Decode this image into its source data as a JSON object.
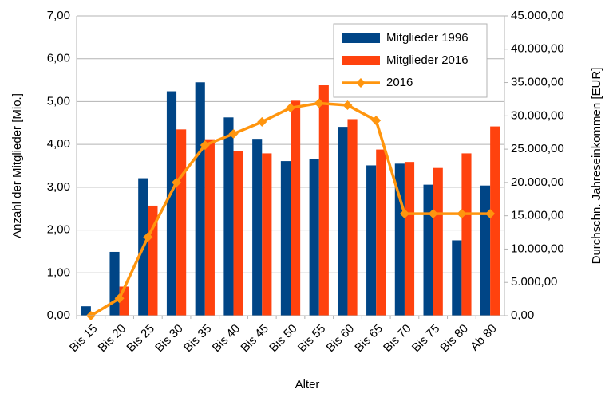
{
  "chart_data": {
    "type": "bar",
    "x_label": "Alter",
    "y_label": "Anzahl der Mitglieder [Mio.]",
    "y2_label": "Durchschn. Jahreseinkommen [EUR]",
    "categories": [
      "Bis 15",
      "Bis 20",
      "Bis 25",
      "Bis 30",
      "Bis 35",
      "Bis 40",
      "Bis 45",
      "Bis 50",
      "Bis 55",
      "Bis 60",
      "Bis 65",
      "Bis 70",
      "Bis 75",
      "Bis 80",
      "Ab 80"
    ],
    "series": [
      {
        "name": "Mitglieder 1996",
        "type": "bar",
        "color": "#004586",
        "values": [
          0.22,
          1.49,
          3.21,
          5.24,
          5.45,
          4.63,
          4.13,
          3.61,
          3.65,
          4.41,
          3.51,
          3.55,
          3.06,
          1.76,
          3.04
        ]
      },
      {
        "name": "Mitglieder 2016",
        "type": "bar",
        "color": "#ff420e",
        "values": [
          0,
          0.68,
          2.57,
          4.35,
          4.12,
          3.85,
          3.79,
          5.02,
          5.38,
          4.59,
          3.88,
          3.59,
          3.45,
          3.79,
          4.42
        ]
      },
      {
        "name": "2016",
        "type": "line",
        "axis": "y2",
        "color": "#ff950e",
        "values": [
          0,
          2600,
          11800,
          20000,
          25600,
          27300,
          29100,
          31200,
          31900,
          31600,
          29300,
          15300,
          15300,
          15300,
          15300
        ]
      }
    ],
    "ylim": [
      0,
      7
    ],
    "yticks": [
      {
        "value": 0,
        "label": "0,00"
      },
      {
        "value": 1,
        "label": "1,00"
      },
      {
        "value": 2,
        "label": "2,00"
      },
      {
        "value": 3,
        "label": "3,00"
      },
      {
        "value": 4,
        "label": "4,00"
      },
      {
        "value": 5,
        "label": "5,00"
      },
      {
        "value": 6,
        "label": "6,00"
      },
      {
        "value": 7,
        "label": "7,00"
      }
    ],
    "y2lim": [
      0,
      45000
    ],
    "y2ticks": [
      {
        "value": 0,
        "label": "0,00"
      },
      {
        "value": 5000,
        "label": "5.000,00"
      },
      {
        "value": 10000,
        "label": "10.000,00"
      },
      {
        "value": 15000,
        "label": "15.000,00"
      },
      {
        "value": 20000,
        "label": "20.000,00"
      },
      {
        "value": 25000,
        "label": "25.000,00"
      },
      {
        "value": 30000,
        "label": "30.000,00"
      },
      {
        "value": 35000,
        "label": "35.000,00"
      },
      {
        "value": 40000,
        "label": "40.000,00"
      },
      {
        "value": 45000,
        "label": "45.000,00"
      }
    ],
    "grid": true,
    "legend": "top-right"
  }
}
